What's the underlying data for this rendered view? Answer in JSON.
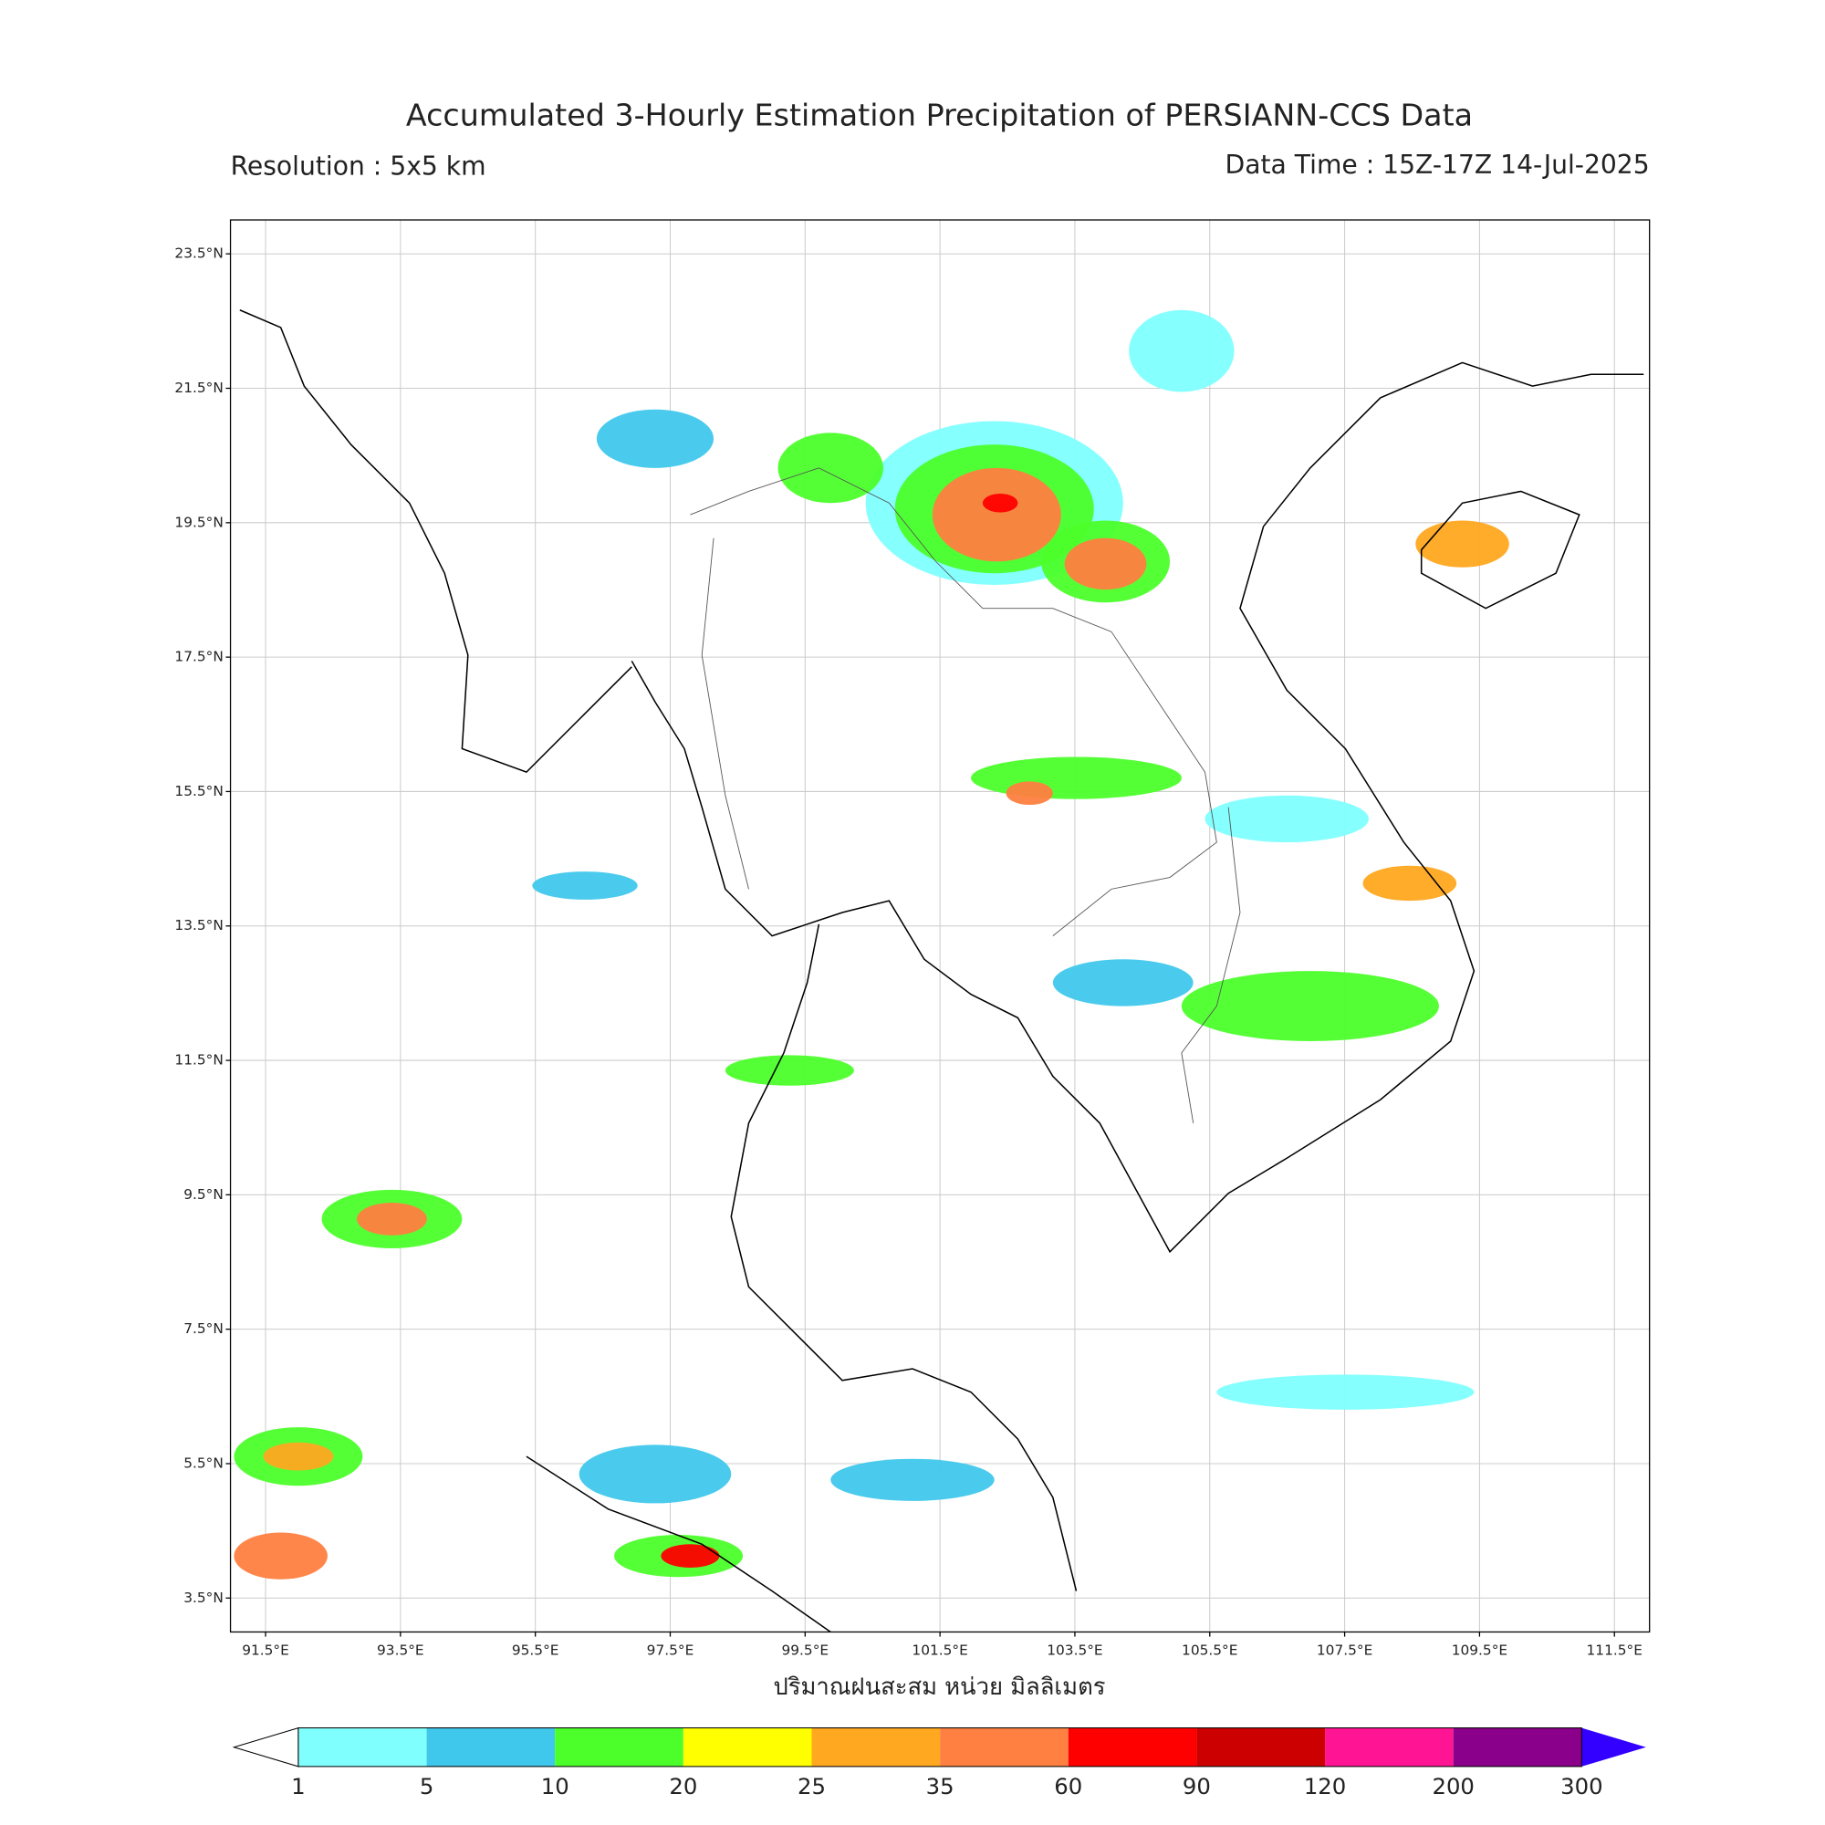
{
  "header": {
    "title": "Accumulated 3-Hourly Estimation Precipitation of PERSIANN-CCS Data",
    "resolution": "Resolution : 5x5 km",
    "data_time": "Data Time : 15Z-17Z 14-Jul-2025"
  },
  "map": {
    "lat_ticks": [
      {
        "value": 23.5,
        "label": "23.5°N"
      },
      {
        "value": 21.5,
        "label": "21.5°N"
      },
      {
        "value": 19.5,
        "label": "19.5°N"
      },
      {
        "value": 17.5,
        "label": "17.5°N"
      },
      {
        "value": 15.5,
        "label": "15.5°N"
      },
      {
        "value": 13.5,
        "label": "13.5°N"
      },
      {
        "value": 11.5,
        "label": "11.5°N"
      },
      {
        "value": 9.5,
        "label": "9.5°N"
      },
      {
        "value": 7.5,
        "label": "7.5°N"
      },
      {
        "value": 5.5,
        "label": "5.5°N"
      },
      {
        "value": 3.5,
        "label": "3.5°N"
      }
    ],
    "lon_ticks": [
      {
        "value": 91.5,
        "label": "91.5°E"
      },
      {
        "value": 93.5,
        "label": "93.5°E"
      },
      {
        "value": 95.5,
        "label": "95.5°E"
      },
      {
        "value": 97.5,
        "label": "97.5°E"
      },
      {
        "value": 99.5,
        "label": "99.5°E"
      },
      {
        "value": 101.5,
        "label": "101.5°E"
      },
      {
        "value": 103.5,
        "label": "103.5°E"
      },
      {
        "value": 105.5,
        "label": "105.5°E"
      },
      {
        "value": 107.5,
        "label": "107.5°E"
      },
      {
        "value": 109.5,
        "label": "109.5°E"
      },
      {
        "value": 111.5,
        "label": "111.5°E"
      }
    ],
    "grid": true,
    "x_label": "ปริมาณฝนสะสม หน่วย มิลลิเมตร"
  },
  "legend": {
    "levels": [
      1,
      5,
      10,
      20,
      25,
      35,
      60,
      90,
      120,
      200,
      300
    ],
    "colors": [
      "#80ffff",
      "#40c8ec",
      "#4cff2a",
      "#ffff00",
      "#ffa820",
      "#ff8040",
      "#ff0000",
      "#cc0000",
      "#ff1493",
      "#8b008b"
    ],
    "under_color": "#ffffff",
    "over_color": "#3300ff"
  }
}
